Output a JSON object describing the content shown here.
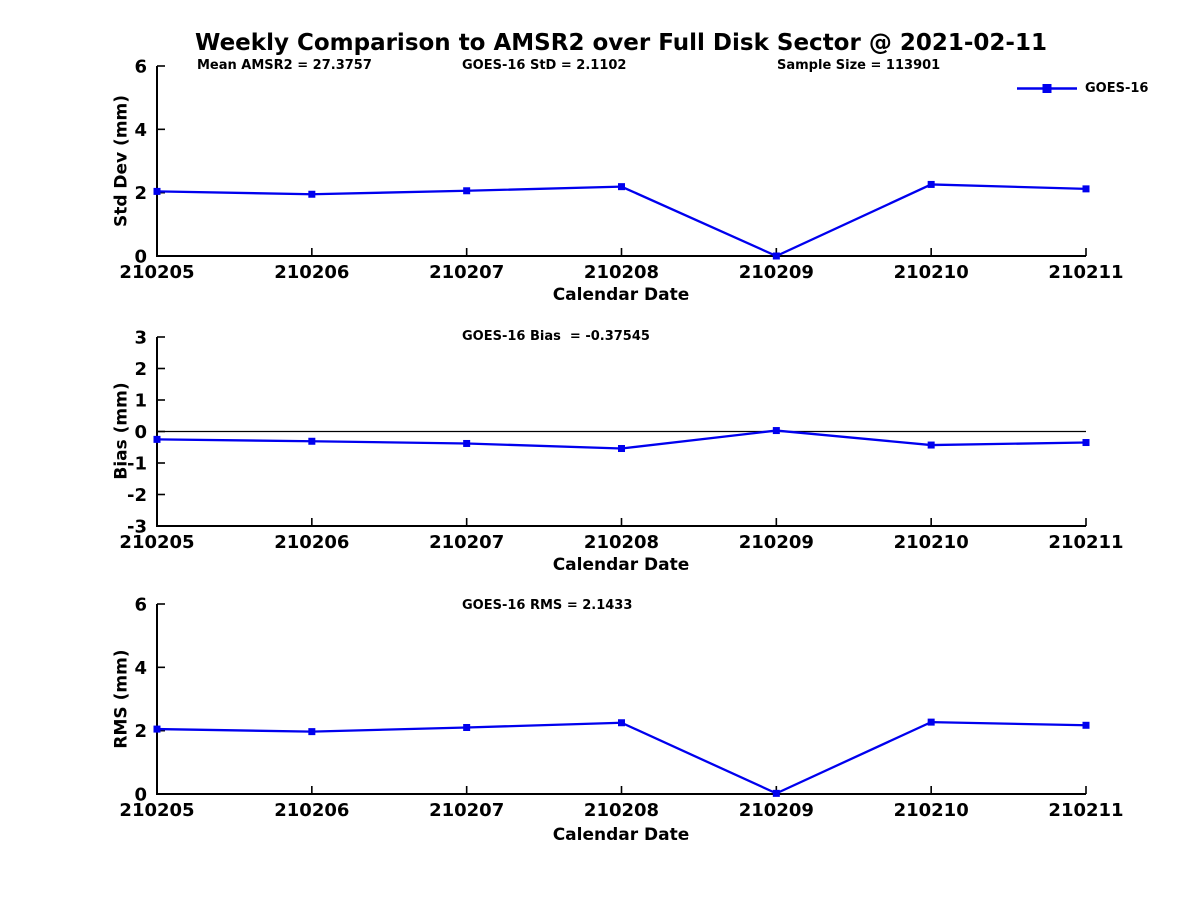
{
  "title": "Weekly Comparison to AMSR2 over Full Disk Sector @ 2021-02-11",
  "colors": {
    "series": "#0000ee",
    "axis": "#000000",
    "zero_line": "#000000"
  },
  "legend": {
    "label": "GOES-16"
  },
  "chart_data": [
    {
      "type": "line",
      "panel": "std-dev",
      "annotations": [
        "Mean AMSR2 = 27.3757",
        "GOES-16 StD = 2.1102",
        "Sample Size = 113901"
      ],
      "categories": [
        "210205",
        "210206",
        "210207",
        "210208",
        "210209",
        "210210",
        "210211"
      ],
      "series": [
        {
          "name": "GOES-16",
          "values": [
            2.04,
            1.95,
            2.06,
            2.19,
            0.0,
            2.26,
            2.12
          ]
        }
      ],
      "xlabel": "Calendar Date",
      "ylabel": "Std Dev (mm)",
      "ylim": [
        0,
        6
      ],
      "yticks": [
        0,
        2,
        4,
        6
      ],
      "zero_line": false,
      "grid": false,
      "legend_position": "top-right",
      "marker": "square"
    },
    {
      "type": "line",
      "panel": "bias",
      "annotations": [
        "GOES-16 Bias  = -0.37545"
      ],
      "categories": [
        "210205",
        "210206",
        "210207",
        "210208",
        "210209",
        "210210",
        "210211"
      ],
      "series": [
        {
          "name": "GOES-16",
          "values": [
            -0.25,
            -0.31,
            -0.38,
            -0.54,
            0.03,
            -0.43,
            -0.35
          ]
        }
      ],
      "xlabel": "Calendar Date",
      "ylabel": "Bias (mm)",
      "ylim": [
        -3,
        3
      ],
      "yticks": [
        -3,
        -2,
        -1,
        0,
        1,
        2,
        3
      ],
      "zero_line": true,
      "grid": false,
      "marker": "square"
    },
    {
      "type": "line",
      "panel": "rms",
      "annotations": [
        "GOES-16 RMS = 2.1433"
      ],
      "categories": [
        "210205",
        "210206",
        "210207",
        "210208",
        "210209",
        "210210",
        "210211"
      ],
      "series": [
        {
          "name": "GOES-16",
          "values": [
            2.05,
            1.97,
            2.1,
            2.25,
            0.02,
            2.27,
            2.17
          ]
        }
      ],
      "xlabel": "Calendar Date",
      "ylabel": "RMS (mm)",
      "ylim": [
        0,
        6
      ],
      "yticks": [
        0,
        2,
        4,
        6
      ],
      "zero_line": false,
      "grid": false,
      "marker": "square"
    }
  ]
}
